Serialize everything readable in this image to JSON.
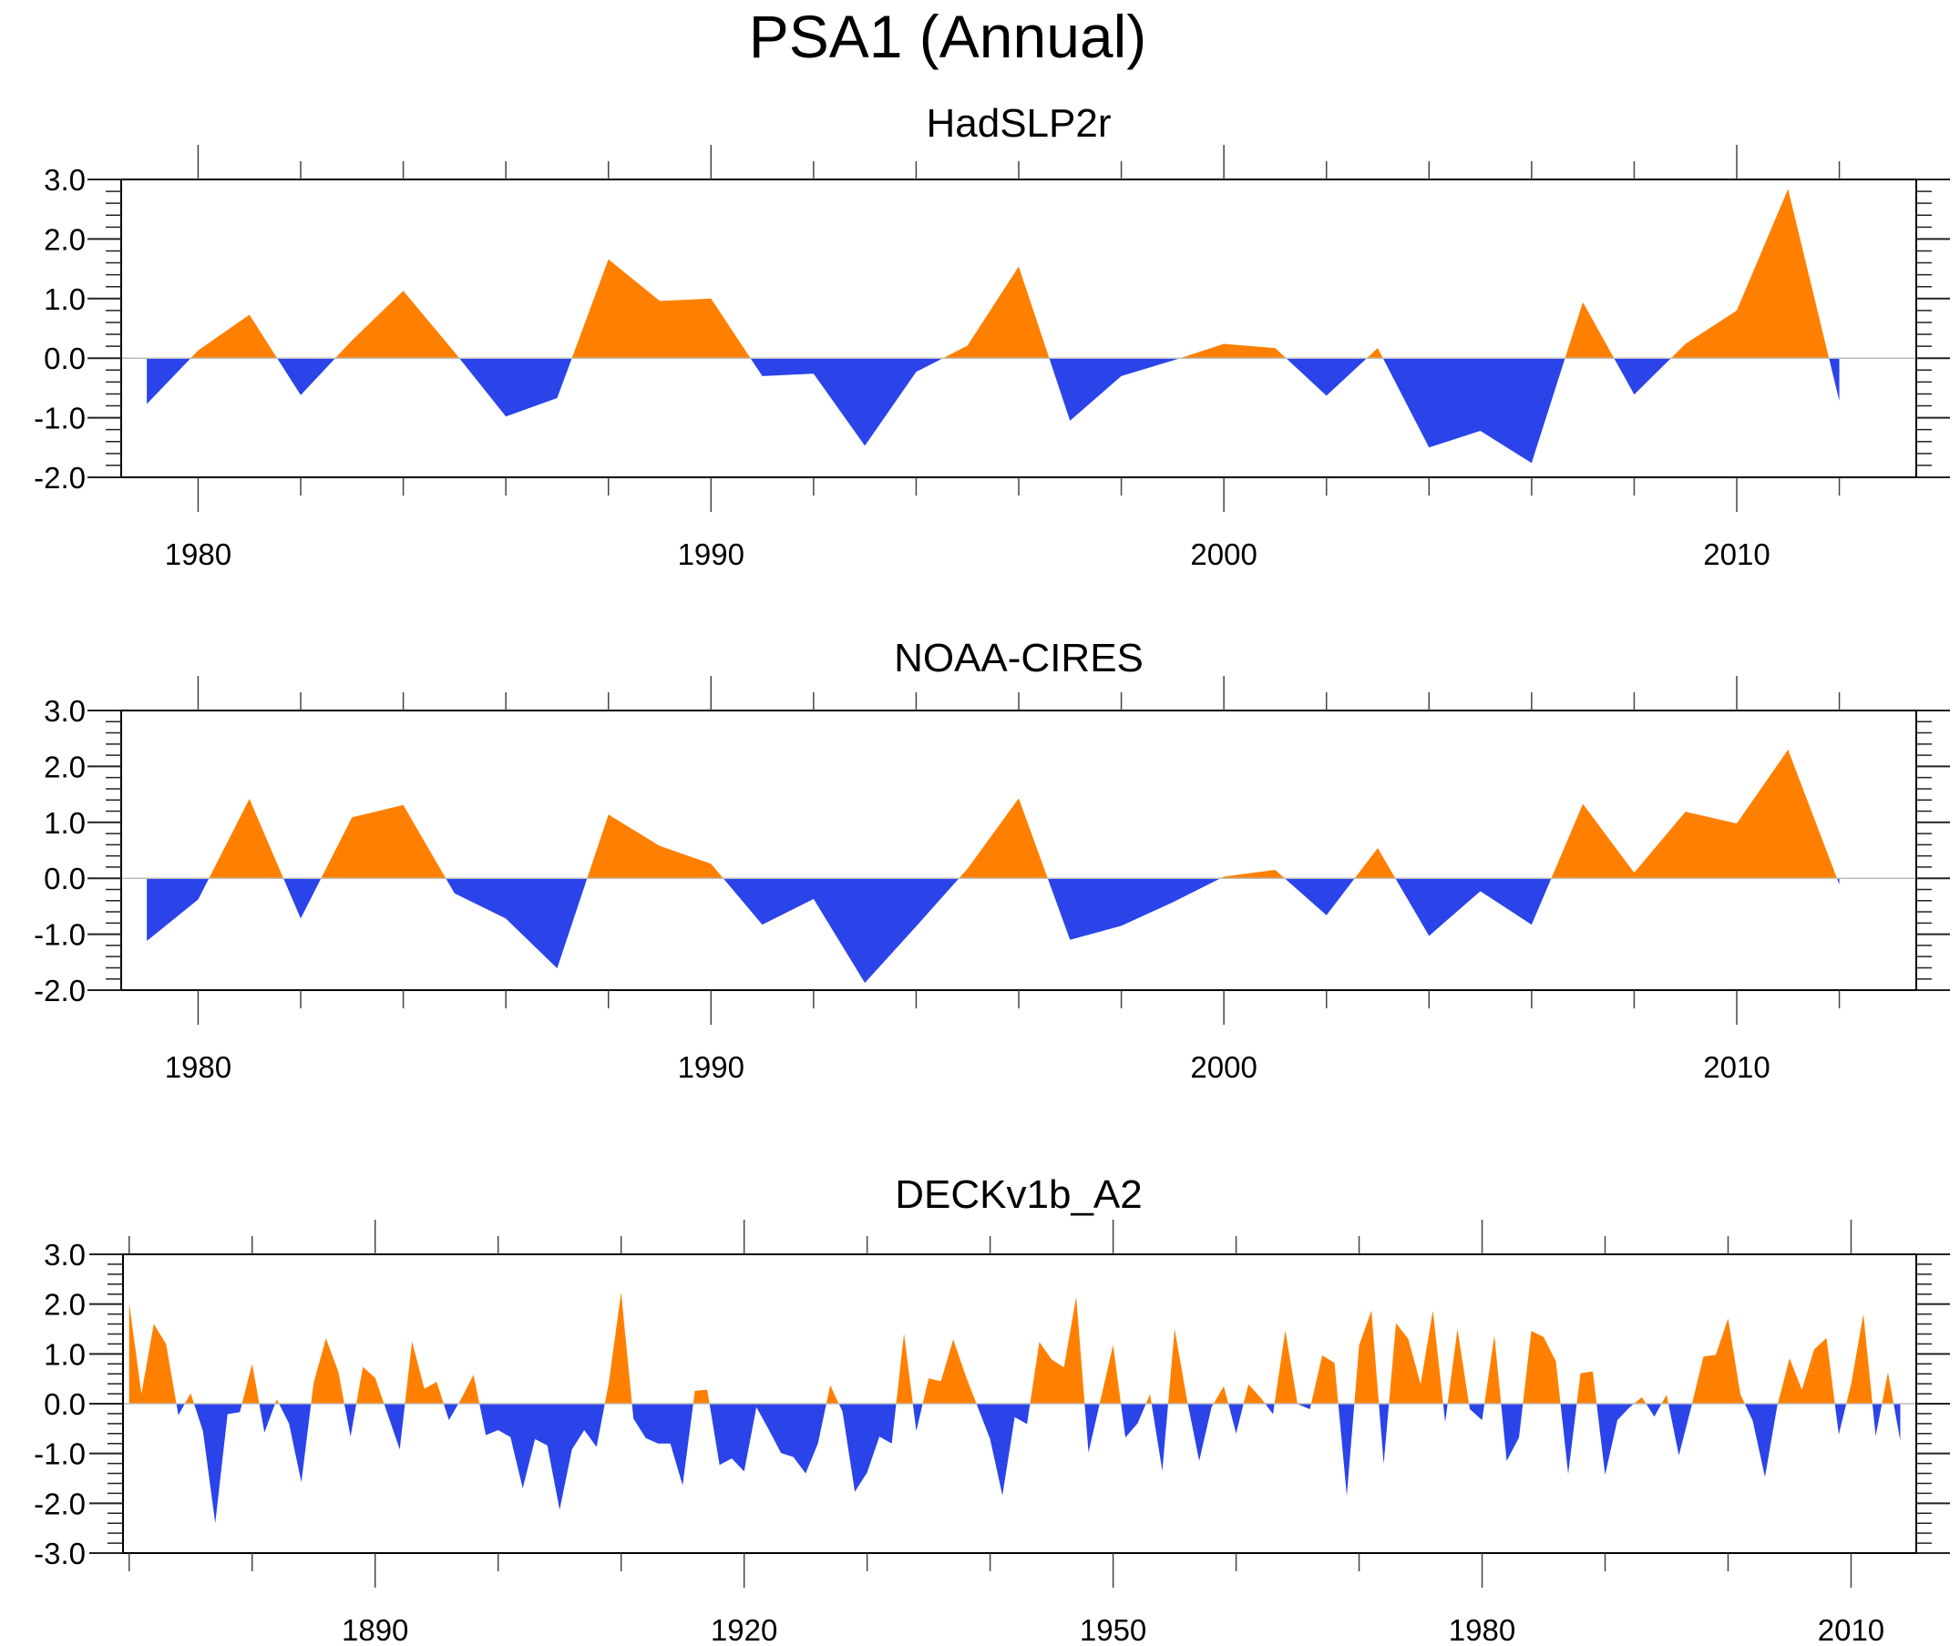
{
  "chart_data": {
    "title": "PSA1 (Annual)",
    "type": "area",
    "colors": {
      "positive": "#ff8000",
      "negative": "#2a44ea",
      "zero_line": "#bdbdbd",
      "axis": "#000000"
    },
    "panels": [
      {
        "subtitle": "HadSLP2r",
        "type": "area",
        "xlabel": "",
        "ylabel": "",
        "xlim": [
          1978.5,
          2013.5
        ],
        "ylim": [
          -2.0,
          3.0
        ],
        "yticks": [
          3.0,
          2.0,
          1.0,
          0.0,
          -1.0,
          -2.0
        ],
        "ytick_labels": [
          "3.0",
          "2.0",
          "1.0",
          "0.0",
          "-1.0",
          "-2.0"
        ],
        "xticks_major": [
          1980,
          1990,
          2000,
          2010
        ],
        "xtick_labels": [
          "1980",
          "1990",
          "2000",
          "2010"
        ],
        "xticks_minor_step": 2,
        "grid": false,
        "x": [
          1979,
          1980,
          1981,
          1982,
          1983,
          1984,
          1985,
          1986,
          1987,
          1988,
          1989,
          1990,
          1991,
          1992,
          1993,
          1994,
          1995,
          1996,
          1997,
          1998,
          1999,
          2000,
          2001,
          2002,
          2003,
          2004,
          2005,
          2006,
          2007,
          2008,
          2009,
          2010,
          2011,
          2012
        ],
        "values": [
          -0.77,
          0.13,
          0.73,
          -0.62,
          0.3,
          1.13,
          0.1,
          -0.98,
          -0.67,
          1.66,
          0.96,
          1.0,
          -0.3,
          -0.26,
          -1.47,
          -0.23,
          0.21,
          1.54,
          -1.05,
          -0.3,
          -0.04,
          0.24,
          0.17,
          -0.63,
          0.17,
          -1.5,
          -1.22,
          -1.76,
          0.94,
          -0.61,
          0.24,
          0.8,
          2.84,
          -0.72
        ]
      },
      {
        "subtitle": "NOAA-CIRES",
        "type": "area",
        "xlabel": "",
        "ylabel": "",
        "xlim": [
          1978.5,
          2013.5
        ],
        "ylim": [
          -2.0,
          3.0
        ],
        "yticks": [
          3.0,
          2.0,
          1.0,
          0.0,
          -1.0,
          -2.0
        ],
        "ytick_labels": [
          "3.0",
          "2.0",
          "1.0",
          "0.0",
          "-1.0",
          "-2.0"
        ],
        "xticks_major": [
          1980,
          1990,
          2000,
          2010
        ],
        "xtick_labels": [
          "1980",
          "1990",
          "2000",
          "2010"
        ],
        "xticks_minor_step": 2,
        "grid": false,
        "x": [
          1979,
          1980,
          1981,
          1982,
          1983,
          1984,
          1985,
          1986,
          1987,
          1988,
          1989,
          1990,
          1991,
          1992,
          1993,
          1994,
          1995,
          1996,
          1997,
          1998,
          1999,
          2000,
          2001,
          2002,
          2003,
          2004,
          2005,
          2006,
          2007,
          2008,
          2009,
          2010,
          2011,
          2012
        ],
        "values": [
          -1.12,
          -0.38,
          1.42,
          -0.72,
          1.09,
          1.31,
          -0.27,
          -0.72,
          -1.61,
          1.14,
          0.58,
          0.26,
          -0.83,
          -0.37,
          -1.87,
          -0.86,
          0.17,
          1.43,
          -1.1,
          -0.85,
          -0.43,
          0.03,
          0.15,
          -0.66,
          0.54,
          -1.03,
          -0.23,
          -0.83,
          1.33,
          0.1,
          1.19,
          0.98,
          2.3,
          -0.11
        ]
      },
      {
        "subtitle": "DECKv1b_A2",
        "type": "area",
        "xlabel": "",
        "ylabel": "",
        "xlim": [
          1869.5,
          2015.3
        ],
        "ylim": [
          -3.0,
          3.0
        ],
        "yticks": [
          3.0,
          2.0,
          1.0,
          0.0,
          -1.0,
          -2.0,
          -3.0
        ],
        "ytick_labels": [
          "3.0",
          "2.0",
          "1.0",
          "0.0",
          "-1.0",
          "-2.0",
          "-3.0"
        ],
        "xticks_major": [
          1890,
          1920,
          1950,
          1980,
          2010
        ],
        "xtick_labels": [
          "1890",
          "1920",
          "1950",
          "1980",
          "2010"
        ],
        "xticks_minor_step": 10,
        "grid": false,
        "x_start": 1870,
        "values": [
          2.02,
          0.2,
          1.6,
          1.2,
          -0.23,
          0.21,
          -0.55,
          -2.4,
          -0.21,
          -0.17,
          0.8,
          -0.58,
          0.09,
          -0.4,
          -1.58,
          0.42,
          1.31,
          0.65,
          -0.66,
          0.74,
          0.52,
          -0.2,
          -0.92,
          1.25,
          0.3,
          0.44,
          -0.33,
          0.1,
          0.58,
          -0.63,
          -0.53,
          -0.67,
          -1.7,
          -0.71,
          -0.84,
          -2.13,
          -0.92,
          -0.53,
          -0.87,
          0.42,
          2.24,
          -0.3,
          -0.69,
          -0.8,
          -0.8,
          -1.64,
          0.26,
          0.28,
          -1.23,
          -1.1,
          -1.36,
          -0.07,
          -0.52,
          -0.99,
          -1.07,
          -1.4,
          -0.8,
          0.37,
          -0.16,
          -1.77,
          -1.38,
          -0.66,
          -0.8,
          1.41,
          -0.55,
          0.51,
          0.45,
          1.29,
          0.57,
          -0.07,
          -0.71,
          -1.84,
          -0.27,
          -0.41,
          1.24,
          0.89,
          0.73,
          2.15,
          -0.98,
          0.1,
          1.18,
          -0.68,
          -0.39,
          0.19,
          -1.35,
          1.5,
          0.09,
          -1.15,
          -0.07,
          0.35,
          -0.6,
          0.39,
          0.12,
          -0.21,
          1.47,
          -0.01,
          -0.11,
          0.97,
          0.82,
          -1.85,
          1.17,
          1.87,
          -1.21,
          1.62,
          1.3,
          0.39,
          1.87,
          -0.37,
          1.5,
          -0.11,
          -0.33,
          1.37,
          -1.15,
          -0.68,
          1.46,
          1.34,
          0.85,
          -1.41,
          0.61,
          0.65,
          -1.43,
          -0.33,
          -0.07,
          0.13,
          -0.26,
          0.18,
          -1.04,
          -0.07,
          0.95,
          0.98,
          1.71,
          0.19,
          -0.34,
          -1.47,
          -0.04,
          0.91,
          0.28,
          1.09,
          1.32,
          -0.62,
          0.39,
          1.8,
          -0.65,
          0.63,
          -0.74
        ]
      }
    ]
  }
}
